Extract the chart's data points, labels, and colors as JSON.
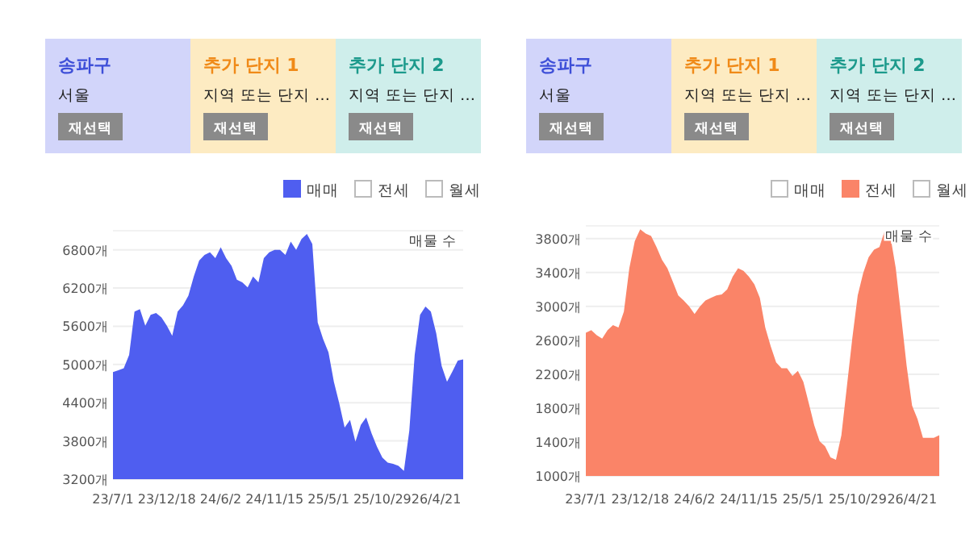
{
  "chart_data": [
    {
      "type": "area",
      "legend": "top right",
      "grid": "y",
      "ylim": [
        3200,
        7100
      ],
      "yticks": [
        {
          "value": 3200,
          "label": "3200개"
        },
        {
          "value": 3800,
          "label": "3800개"
        },
        {
          "value": 4400,
          "label": "4400개"
        },
        {
          "value": 5000,
          "label": "5000개"
        },
        {
          "value": 5600,
          "label": "5600개"
        },
        {
          "value": 6200,
          "label": "6200개"
        },
        {
          "value": 6800,
          "label": "6800개"
        }
      ],
      "annotations": [
        "송파구",
        "서울",
        "재선택",
        "추가 단지 1",
        "지역 또는 단지 …",
        "재선택",
        "추가 단지 2",
        "지역 또는 단지 …",
        "재선택",
        "매물 수"
      ],
      "categories": [
        "23/7/1",
        null,
        null,
        null,
        null,
        null,
        null,
        null,
        null,
        null,
        "23/12/18",
        null,
        null,
        null,
        null,
        null,
        null,
        null,
        null,
        null,
        "24/6/2",
        null,
        null,
        null,
        null,
        null,
        null,
        null,
        null,
        null,
        "24/11/15",
        null,
        null,
        null,
        null,
        null,
        null,
        null,
        null,
        null,
        "25/5/1",
        null,
        null,
        null,
        null,
        null,
        null,
        null,
        null,
        null,
        "25/10/29",
        null,
        null,
        null,
        null,
        null,
        null,
        null,
        null,
        null,
        "26/4/21",
        null,
        null,
        null,
        null,
        null
      ],
      "series": [
        {
          "name": "매매",
          "color": "#4f5ef0",
          "values": [
            4880,
            4910,
            4940,
            5150,
            5830,
            5870,
            5610,
            5780,
            5810,
            5740,
            5610,
            5450,
            5830,
            5930,
            6080,
            6380,
            6630,
            6720,
            6760,
            6670,
            6840,
            6670,
            6550,
            6330,
            6290,
            6210,
            6380,
            6290,
            6670,
            6760,
            6800,
            6800,
            6720,
            6930,
            6800,
            6970,
            7050,
            6890,
            5660,
            5400,
            5190,
            4730,
            4390,
            4010,
            4130,
            3790,
            4050,
            4170,
            3920,
            3710,
            3540,
            3460,
            3440,
            3410,
            3330,
            3960,
            5150,
            5780,
            5910,
            5830,
            5490,
            4980,
            4730,
            4890,
            5060,
            5080
          ]
        },
        {
          "name": "전세",
          "color": "#ffffff",
          "values": [
            null,
            null,
            null,
            null,
            null,
            null,
            null,
            null,
            null,
            null,
            null,
            null,
            null,
            null,
            null,
            null,
            null,
            null,
            null,
            null,
            null,
            null,
            null,
            null,
            null,
            null,
            null,
            null,
            null,
            null,
            null,
            null,
            null,
            null,
            null,
            null,
            null,
            null,
            null,
            null,
            null,
            null,
            null,
            null,
            null,
            null,
            null,
            null,
            null,
            null,
            null,
            null,
            null,
            null,
            null,
            null,
            null,
            null,
            null,
            null,
            null,
            null,
            null,
            null,
            null,
            null
          ]
        },
        {
          "name": "월세",
          "color": "#ffffff",
          "values": [
            null,
            null,
            null,
            null,
            null,
            null,
            null,
            null,
            null,
            null,
            null,
            null,
            null,
            null,
            null,
            null,
            null,
            null,
            null,
            null,
            null,
            null,
            null,
            null,
            null,
            null,
            null,
            null,
            null,
            null,
            null,
            null,
            null,
            null,
            null,
            null,
            null,
            null,
            null,
            null,
            null,
            null,
            null,
            null,
            null,
            null,
            null,
            null,
            null,
            null,
            null,
            null,
            null,
            null,
            null,
            null,
            null,
            null,
            null,
            null,
            null,
            null,
            null,
            null,
            null,
            null
          ]
        }
      ]
    },
    {
      "type": "area",
      "legend": "top right",
      "grid": "y",
      "ylim": [
        1000,
        3950
      ],
      "yticks": [
        {
          "value": 1000,
          "label": "1000개"
        },
        {
          "value": 1400,
          "label": "1400개"
        },
        {
          "value": 1800,
          "label": "1800개"
        },
        {
          "value": 2200,
          "label": "2200개"
        },
        {
          "value": 2600,
          "label": "2600개"
        },
        {
          "value": 3000,
          "label": "3000개"
        },
        {
          "value": 3400,
          "label": "3400개"
        },
        {
          "value": 3800,
          "label": "3800개"
        }
      ],
      "annotations": [
        "송파구",
        "서울",
        "재선택",
        "추가 단지 1",
        "지역 또는 단지 …",
        "재선택",
        "추가 단지 2",
        "지역 또는 단지 …",
        "재선택",
        "매물 수"
      ],
      "categories": [
        "23/7/1",
        null,
        null,
        null,
        null,
        null,
        null,
        null,
        null,
        null,
        "23/12/18",
        null,
        null,
        null,
        null,
        null,
        null,
        null,
        null,
        null,
        "24/6/2",
        null,
        null,
        null,
        null,
        null,
        null,
        null,
        null,
        null,
        "24/11/15",
        null,
        null,
        null,
        null,
        null,
        null,
        null,
        null,
        null,
        "25/5/1",
        null,
        null,
        null,
        null,
        null,
        null,
        null,
        null,
        null,
        "25/10/29",
        null,
        null,
        null,
        null,
        null,
        null,
        null,
        null,
        null,
        "26/4/21",
        null,
        null,
        null,
        null,
        null
      ],
      "series": [
        {
          "name": "매매",
          "color": "#ffffff",
          "values": [
            null,
            null,
            null,
            null,
            null,
            null,
            null,
            null,
            null,
            null,
            null,
            null,
            null,
            null,
            null,
            null,
            null,
            null,
            null,
            null,
            null,
            null,
            null,
            null,
            null,
            null,
            null,
            null,
            null,
            null,
            null,
            null,
            null,
            null,
            null,
            null,
            null,
            null,
            null,
            null,
            null,
            null,
            null,
            null,
            null,
            null,
            null,
            null,
            null,
            null,
            null,
            null,
            null,
            null,
            null,
            null,
            null,
            null,
            null,
            null,
            null,
            null,
            null,
            null,
            null,
            null
          ]
        },
        {
          "name": "전세",
          "color": "#fa8468",
          "values": [
            2690,
            2720,
            2660,
            2620,
            2720,
            2780,
            2750,
            2940,
            3450,
            3770,
            3910,
            3860,
            3830,
            3700,
            3550,
            3450,
            3290,
            3130,
            3070,
            3000,
            2910,
            3000,
            3070,
            3100,
            3130,
            3140,
            3200,
            3350,
            3450,
            3420,
            3350,
            3260,
            3100,
            2750,
            2530,
            2340,
            2270,
            2270,
            2180,
            2240,
            2110,
            1860,
            1600,
            1410,
            1350,
            1220,
            1190,
            1480,
            2050,
            2620,
            3130,
            3390,
            3580,
            3670,
            3700,
            3900,
            3830,
            3450,
            2880,
            2300,
            1830,
            1670,
            1450,
            1450,
            1450,
            1480
          ]
        },
        {
          "name": "월세",
          "color": "#ffffff",
          "values": [
            null,
            null,
            null,
            null,
            null,
            null,
            null,
            null,
            null,
            null,
            null,
            null,
            null,
            null,
            null,
            null,
            null,
            null,
            null,
            null,
            null,
            null,
            null,
            null,
            null,
            null,
            null,
            null,
            null,
            null,
            null,
            null,
            null,
            null,
            null,
            null,
            null,
            null,
            null,
            null,
            null,
            null,
            null,
            null,
            null,
            null,
            null,
            null,
            null,
            null,
            null,
            null,
            null,
            null,
            null,
            null,
            null,
            null,
            null,
            null,
            null,
            null,
            null,
            null,
            null,
            null
          ]
        }
      ]
    }
  ]
}
